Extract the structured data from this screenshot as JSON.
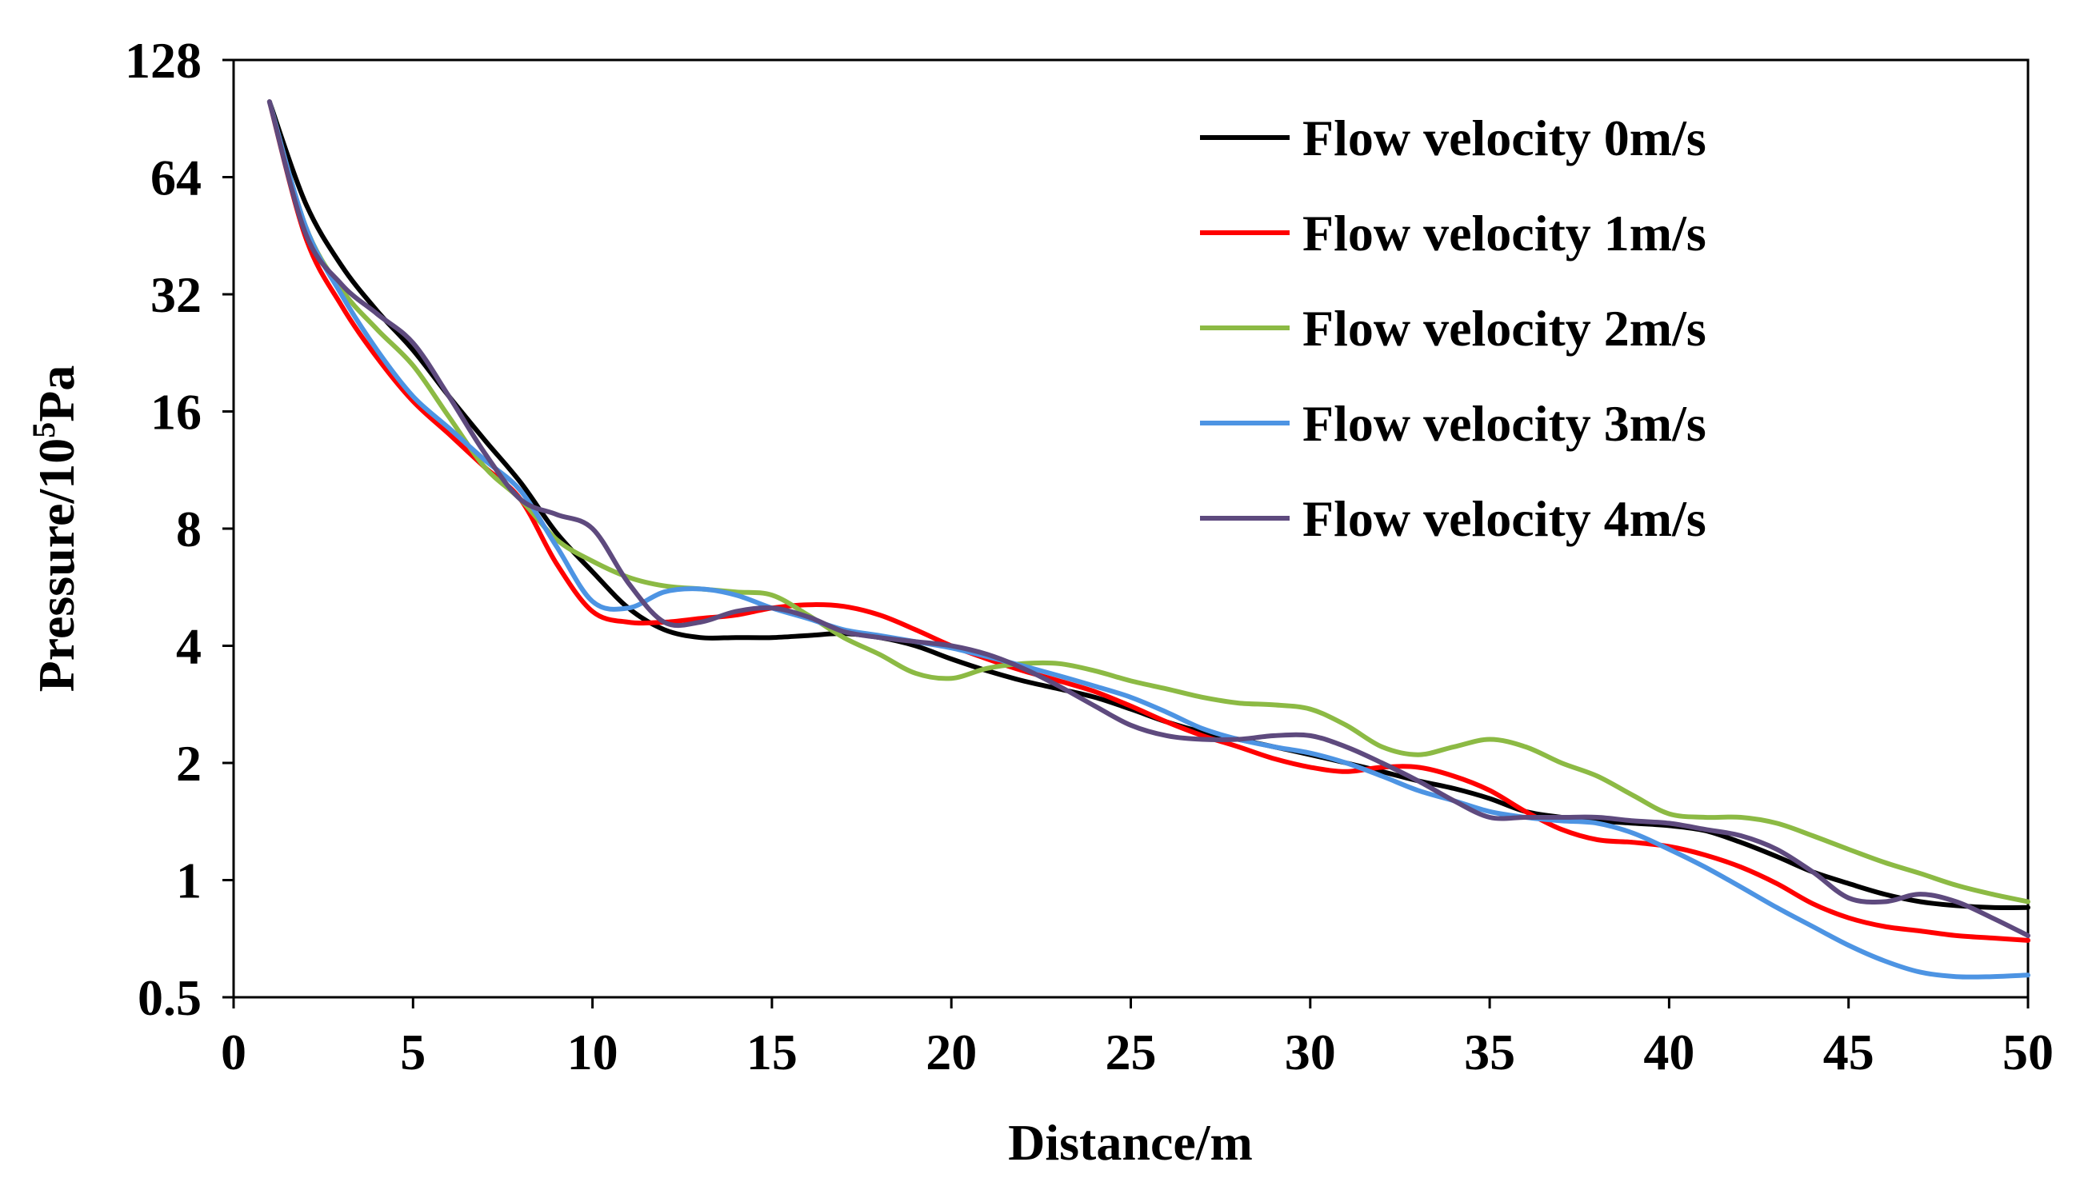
{
  "chart_data": {
    "type": "line",
    "title": "",
    "xlabel": "Distance/m",
    "ylabel_main": "Pressure/10",
    "ylabel_sup": "5",
    "ylabel_tail": "Pa",
    "xlim": [
      0,
      50
    ],
    "ylim": [
      0.5,
      128
    ],
    "yscale": "log2",
    "grid": false,
    "legend_position": "top-right",
    "x_ticks": [
      "0",
      "5",
      "10",
      "15",
      "20",
      "25",
      "30",
      "35",
      "40",
      "45",
      "50"
    ],
    "y_ticks": [
      "0.5",
      "1",
      "2",
      "4",
      "8",
      "16",
      "32",
      "64",
      "128"
    ],
    "series": [
      {
        "name": "Flow velocity 0m/s",
        "color": "#000000",
        "x": [
          1,
          2,
          3,
          4,
          5,
          6,
          7,
          8,
          9,
          10,
          11,
          12,
          13,
          14,
          15,
          16,
          17,
          18,
          19,
          20,
          21,
          22,
          23,
          24,
          25,
          26,
          27,
          28,
          29,
          30,
          31,
          32,
          33,
          34,
          35,
          36,
          37,
          38,
          39,
          40,
          41,
          42,
          43,
          44,
          45,
          46,
          47,
          48,
          49,
          50
        ],
        "y": [
          100,
          55,
          38,
          29,
          23,
          17.5,
          13.5,
          10.5,
          7.8,
          6.2,
          5.0,
          4.4,
          4.2,
          4.2,
          4.2,
          4.25,
          4.3,
          4.2,
          4.0,
          3.7,
          3.45,
          3.25,
          3.1,
          2.95,
          2.75,
          2.55,
          2.4,
          2.3,
          2.2,
          2.1,
          2.0,
          1.9,
          1.8,
          1.72,
          1.62,
          1.5,
          1.45,
          1.42,
          1.4,
          1.38,
          1.34,
          1.25,
          1.15,
          1.05,
          0.98,
          0.92,
          0.88,
          0.86,
          0.85,
          0.85
        ]
      },
      {
        "name": "Flow velocity 1m/s",
        "color": "#ff0000",
        "x": [
          1,
          2,
          3,
          4,
          5,
          6,
          7,
          8,
          9,
          10,
          11,
          12,
          13,
          14,
          15,
          16,
          17,
          18,
          19,
          20,
          21,
          22,
          23,
          24,
          25,
          26,
          27,
          28,
          29,
          30,
          31,
          32,
          33,
          34,
          35,
          36,
          37,
          38,
          39,
          40,
          41,
          42,
          43,
          44,
          45,
          46,
          47,
          48,
          49,
          50
        ],
        "y": [
          100,
          45,
          30,
          22,
          17,
          14,
          11.5,
          9.5,
          6.5,
          4.9,
          4.6,
          4.6,
          4.7,
          4.8,
          5.0,
          5.1,
          5.05,
          4.8,
          4.4,
          4.0,
          3.7,
          3.45,
          3.25,
          3.05,
          2.8,
          2.55,
          2.35,
          2.2,
          2.05,
          1.95,
          1.9,
          1.95,
          1.95,
          1.85,
          1.7,
          1.5,
          1.35,
          1.27,
          1.25,
          1.22,
          1.16,
          1.08,
          0.98,
          0.87,
          0.8,
          0.76,
          0.74,
          0.72,
          0.71,
          0.7
        ]
      },
      {
        "name": "Flow velocity 2m/s",
        "color": "#8cba44",
        "x": [
          1,
          2,
          3,
          4,
          5,
          6,
          7,
          8,
          9,
          10,
          11,
          12,
          13,
          14,
          15,
          16,
          17,
          18,
          19,
          20,
          21,
          22,
          23,
          24,
          25,
          26,
          27,
          28,
          29,
          30,
          31,
          32,
          33,
          34,
          35,
          36,
          37,
          38,
          39,
          40,
          41,
          42,
          43,
          44,
          45,
          46,
          47,
          48,
          49,
          50
        ],
        "y": [
          100,
          48,
          33,
          26,
          21,
          15.5,
          11.5,
          9.5,
          7.5,
          6.6,
          6.0,
          5.7,
          5.6,
          5.5,
          5.4,
          4.8,
          4.2,
          3.8,
          3.4,
          3.3,
          3.5,
          3.6,
          3.6,
          3.45,
          3.25,
          3.1,
          2.95,
          2.85,
          2.82,
          2.75,
          2.5,
          2.2,
          2.1,
          2.2,
          2.3,
          2.2,
          2.0,
          1.85,
          1.65,
          1.48,
          1.45,
          1.45,
          1.4,
          1.3,
          1.2,
          1.11,
          1.04,
          0.97,
          0.92,
          0.88
        ]
      },
      {
        "name": "Flow velocity 3m/s",
        "color": "#4d94e3",
        "x": [
          1,
          2,
          3,
          4,
          5,
          6,
          7,
          8,
          9,
          10,
          11,
          12,
          13,
          14,
          15,
          16,
          17,
          18,
          19,
          20,
          21,
          22,
          23,
          24,
          25,
          26,
          27,
          28,
          29,
          30,
          31,
          32,
          33,
          34,
          35,
          36,
          37,
          38,
          39,
          40,
          41,
          42,
          43,
          44,
          45,
          46,
          47,
          48,
          49,
          50
        ],
        "y": [
          100,
          48,
          32,
          23,
          17.5,
          14.5,
          12,
          10,
          7.2,
          5.2,
          5.0,
          5.5,
          5.6,
          5.4,
          5.0,
          4.7,
          4.4,
          4.25,
          4.1,
          3.95,
          3.75,
          3.55,
          3.35,
          3.15,
          2.95,
          2.7,
          2.45,
          2.3,
          2.2,
          2.12,
          2.0,
          1.85,
          1.7,
          1.6,
          1.5,
          1.45,
          1.42,
          1.4,
          1.32,
          1.2,
          1.08,
          0.96,
          0.85,
          0.76,
          0.68,
          0.62,
          0.58,
          0.565,
          0.565,
          0.57
        ]
      },
      {
        "name": "Flow velocity 4m/s",
        "color": "#5e4a7e",
        "x": [
          1,
          2,
          3,
          4,
          5,
          6,
          7,
          8,
          9,
          10,
          11,
          12,
          13,
          14,
          15,
          16,
          17,
          18,
          19,
          20,
          21,
          22,
          23,
          24,
          25,
          26,
          27,
          28,
          29,
          30,
          31,
          32,
          33,
          34,
          35,
          36,
          37,
          38,
          39,
          40,
          41,
          42,
          43,
          44,
          45,
          46,
          47,
          48,
          49,
          50
        ],
        "y": [
          100,
          46,
          34,
          28.5,
          24,
          17.5,
          12.5,
          9.5,
          8.7,
          8.0,
          5.8,
          4.6,
          4.6,
          4.9,
          5.0,
          4.75,
          4.35,
          4.2,
          4.1,
          4.0,
          3.8,
          3.5,
          3.15,
          2.8,
          2.5,
          2.35,
          2.3,
          2.3,
          2.35,
          2.35,
          2.2,
          2.0,
          1.8,
          1.6,
          1.45,
          1.45,
          1.45,
          1.45,
          1.42,
          1.4,
          1.35,
          1.3,
          1.2,
          1.05,
          0.9,
          0.88,
          0.92,
          0.88,
          0.8,
          0.72
        ]
      }
    ]
  }
}
